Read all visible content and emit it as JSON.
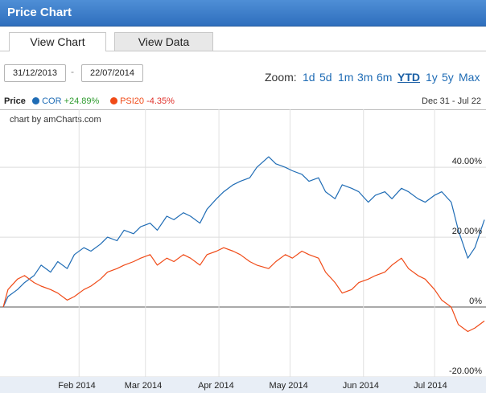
{
  "window": {
    "title": "Price Chart"
  },
  "tabs": [
    {
      "label": "View Chart"
    },
    {
      "label": "View Data"
    }
  ],
  "controls": {
    "start_date": "31/12/2013",
    "separator": "-",
    "end_date": "22/07/2014",
    "zoom_label": "Zoom:",
    "zoom_options": [
      "1d",
      "5d",
      "1m",
      "3m",
      "6m",
      "YTD",
      "1y",
      "5y",
      "Max"
    ],
    "zoom_selected": "YTD"
  },
  "legend": {
    "title": "Price",
    "period": "Dec 31 - Jul 22",
    "items": [
      {
        "name": "COR",
        "change": "+24.89%",
        "color": "#1f6cb5",
        "change_color": "#2e9b2e"
      },
      {
        "name": "PSI20",
        "change": "-4.35%",
        "color": "#f04a17",
        "change_color": "#e0302a"
      }
    ]
  },
  "chart_data": {
    "type": "line",
    "credit": "chart by amCharts.com",
    "x_ticks": [
      "Feb 2014",
      "Mar 2014",
      "Apr 2014",
      "May 2014",
      "Jun 2014",
      "Jul 2014"
    ],
    "y_ticks": [
      "40.00%",
      "20.00%",
      "0%",
      "-20.00%"
    ],
    "y_tick_values": [
      40,
      20,
      0,
      -20
    ],
    "ylim": [
      -20,
      52
    ],
    "x_range": [
      "2013-12-31",
      "2014-07-22"
    ],
    "series": [
      {
        "name": "COR",
        "color": "#1f6cb5",
        "x": [
          "2013-12-31",
          "2014-01-02",
          "2014-01-06",
          "2014-01-09",
          "2014-01-13",
          "2014-01-16",
          "2014-01-20",
          "2014-01-23",
          "2014-01-27",
          "2014-01-30",
          "2014-02-03",
          "2014-02-06",
          "2014-02-10",
          "2014-02-13",
          "2014-02-17",
          "2014-02-20",
          "2014-02-24",
          "2014-02-27",
          "2014-03-03",
          "2014-03-06",
          "2014-03-10",
          "2014-03-13",
          "2014-03-17",
          "2014-03-20",
          "2014-03-24",
          "2014-03-27",
          "2014-03-31",
          "2014-04-03",
          "2014-04-07",
          "2014-04-10",
          "2014-04-14",
          "2014-04-17",
          "2014-04-22",
          "2014-04-25",
          "2014-04-29",
          "2014-05-02",
          "2014-05-06",
          "2014-05-09",
          "2014-05-13",
          "2014-05-16",
          "2014-05-20",
          "2014-05-23",
          "2014-05-27",
          "2014-05-30",
          "2014-06-03",
          "2014-06-06",
          "2014-06-10",
          "2014-06-13",
          "2014-06-17",
          "2014-06-20",
          "2014-06-24",
          "2014-06-27",
          "2014-07-01",
          "2014-07-04",
          "2014-07-08",
          "2014-07-11",
          "2014-07-15",
          "2014-07-18",
          "2014-07-22"
        ],
        "values": [
          0,
          3,
          5,
          7,
          9,
          12,
          10,
          13,
          11,
          15,
          17,
          16,
          18,
          20,
          19,
          22,
          21,
          23,
          24,
          22,
          26,
          25,
          27,
          26,
          24,
          28,
          31,
          33,
          35,
          36,
          37,
          40,
          43,
          41,
          40,
          39,
          38,
          36,
          37,
          33,
          31,
          35,
          34,
          33,
          30,
          32,
          33,
          31,
          34,
          33,
          31,
          30,
          32,
          33,
          30,
          22,
          14,
          17,
          25
        ]
      },
      {
        "name": "PSI20",
        "color": "#f04a17",
        "x": [
          "2013-12-31",
          "2014-01-02",
          "2014-01-06",
          "2014-01-09",
          "2014-01-13",
          "2014-01-16",
          "2014-01-20",
          "2014-01-23",
          "2014-01-27",
          "2014-01-30",
          "2014-02-03",
          "2014-02-06",
          "2014-02-10",
          "2014-02-13",
          "2014-02-17",
          "2014-02-20",
          "2014-02-24",
          "2014-02-27",
          "2014-03-03",
          "2014-03-06",
          "2014-03-10",
          "2014-03-13",
          "2014-03-17",
          "2014-03-20",
          "2014-03-24",
          "2014-03-27",
          "2014-03-31",
          "2014-04-03",
          "2014-04-07",
          "2014-04-10",
          "2014-04-14",
          "2014-04-17",
          "2014-04-22",
          "2014-04-25",
          "2014-04-29",
          "2014-05-02",
          "2014-05-06",
          "2014-05-09",
          "2014-05-13",
          "2014-05-16",
          "2014-05-20",
          "2014-05-23",
          "2014-05-27",
          "2014-05-30",
          "2014-06-03",
          "2014-06-06",
          "2014-06-10",
          "2014-06-13",
          "2014-06-17",
          "2014-06-20",
          "2014-06-24",
          "2014-06-27",
          "2014-07-01",
          "2014-07-04",
          "2014-07-08",
          "2014-07-11",
          "2014-07-15",
          "2014-07-18",
          "2014-07-22"
        ],
        "values": [
          0,
          5,
          8,
          9,
          7,
          6,
          5,
          4,
          2,
          3,
          5,
          6,
          8,
          10,
          11,
          12,
          13,
          14,
          15,
          12,
          14,
          13,
          15,
          14,
          12,
          15,
          16,
          17,
          16,
          15,
          13,
          12,
          11,
          13,
          15,
          14,
          16,
          15,
          14,
          10,
          7,
          4,
          5,
          7,
          8,
          9,
          10,
          12,
          14,
          11,
          9,
          8,
          5,
          2,
          0,
          -5,
          -7,
          -6,
          -4
        ]
      }
    ]
  }
}
